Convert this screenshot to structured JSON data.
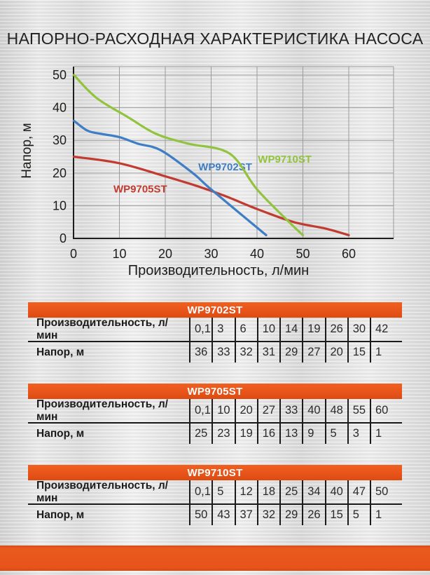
{
  "page": {
    "title": "НАПОРНО-РАСХОДНАЯ ХАРАКТЕРИСТИКА НАСОСА"
  },
  "colors": {
    "accent_orange": "#e8541b",
    "axis": "#1d1d1b",
    "grid": "#9b9b9b",
    "curve_blue": "#3f7dc5",
    "curve_red": "#c13b30",
    "curve_green": "#92c33e",
    "text_dark": "#1d1d1b",
    "header_text": "#ffffff"
  },
  "chart_data": {
    "type": "line",
    "title": "",
    "xlabel": "Производительность, л/мин",
    "ylabel": "Напор, м",
    "xlim": [
      0,
      70
    ],
    "ylim": [
      0,
      52.5
    ],
    "xticks": [
      0,
      10,
      20,
      30,
      40,
      50,
      60
    ],
    "yticks": [
      0,
      10,
      20,
      30,
      40,
      50
    ],
    "grid": true,
    "legend_position": "inline-labels",
    "series": [
      {
        "name": "WP9705ST",
        "color": "#c13b30",
        "label_pos": {
          "x": 8.7,
          "y": 14.1
        },
        "x": [
          0.1,
          10,
          20,
          27,
          33,
          40,
          48,
          55,
          60
        ],
        "y": [
          25,
          23,
          19,
          16,
          13,
          9,
          5,
          3,
          1
        ]
      },
      {
        "name": "WP9702ST",
        "color": "#3f7dc5",
        "label_pos": {
          "x": 27.2,
          "y": 20.8
        },
        "x": [
          0.1,
          3,
          6,
          10,
          14,
          19,
          26,
          30,
          42
        ],
        "y": [
          36,
          33,
          32,
          31,
          29,
          27,
          20,
          15,
          1
        ]
      },
      {
        "name": "WP9710ST",
        "color": "#92c33e",
        "label_pos": {
          "x": 40.2,
          "y": 23.2
        },
        "x": [
          0.1,
          5,
          12,
          18,
          25,
          34,
          40,
          47,
          50
        ],
        "y": [
          50,
          43,
          37,
          32,
          29,
          26,
          15,
          5,
          1
        ]
      }
    ]
  },
  "tables": [
    {
      "title": "WP9702ST",
      "row1_label": "Производительность, л/мин",
      "row1_values": [
        "0,1",
        "3",
        "6",
        "10",
        "14",
        "19",
        "26",
        "30",
        "42"
      ],
      "row2_label": "Напор, м",
      "row2_values": [
        "36",
        "33",
        "32",
        "31",
        "29",
        "27",
        "20",
        "15",
        "1"
      ]
    },
    {
      "title": "WP9705ST",
      "row1_label": "Производительность, л/мин",
      "row1_values": [
        "0,1",
        "10",
        "20",
        "27",
        "33",
        "40",
        "48",
        "55",
        "60"
      ],
      "row2_label": "Напор, м",
      "row2_values": [
        "25",
        "23",
        "19",
        "16",
        "13",
        "9",
        "5",
        "3",
        "1"
      ]
    },
    {
      "title": "WP9710ST",
      "row1_label": "Производительность, л/мин",
      "row1_values": [
        "0,1",
        "5",
        "12",
        "18",
        "25",
        "34",
        "40",
        "47",
        "50"
      ],
      "row2_label": "Напор, м",
      "row2_values": [
        "50",
        "43",
        "37",
        "32",
        "29",
        "26",
        "15",
        "5",
        "1"
      ]
    }
  ]
}
